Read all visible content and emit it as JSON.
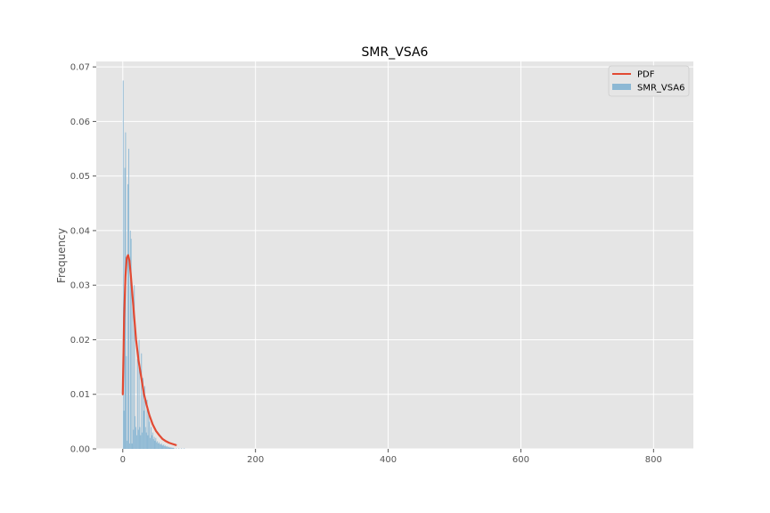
{
  "chart_data": {
    "type": "bar",
    "title": "SMR_VSA6",
    "xlabel": "",
    "ylabel": "Frequency",
    "xlim": [
      -40,
      860
    ],
    "ylim": [
      0,
      0.071
    ],
    "xticks": [
      0,
      200,
      400,
      600,
      800
    ],
    "yticks": [
      0.0,
      0.01,
      0.02,
      0.03,
      0.04,
      0.05,
      0.06,
      0.07
    ],
    "xtick_labels": [
      "0",
      "200",
      "400",
      "600",
      "800"
    ],
    "ytick_labels": [
      "0.00",
      "0.01",
      "0.02",
      "0.03",
      "0.04",
      "0.05",
      "0.06",
      "0.07"
    ],
    "grid": true,
    "legend_position": "top-right",
    "legend": [
      "PDF",
      "SMR_VSA6"
    ],
    "colors": {
      "histogram": "#8cb8d4",
      "pdf": "#e24a33",
      "background": "#e5e5e5",
      "grid": "#ffffff"
    },
    "histogram": {
      "name": "SMR_VSA6",
      "bin_width": 1.2,
      "bins": [
        [
          0.0,
          0.0675
        ],
        [
          1.2,
          0.007
        ],
        [
          2.4,
          0.0515
        ],
        [
          3.6,
          0.058
        ],
        [
          4.8,
          0.017
        ],
        [
          6.0,
          0.0015
        ],
        [
          7.2,
          0.0485
        ],
        [
          8.4,
          0.055
        ],
        [
          9.6,
          0.001
        ],
        [
          10.8,
          0.04
        ],
        [
          12.0,
          0.0385
        ],
        [
          13.2,
          0.001
        ],
        [
          14.4,
          0.028
        ],
        [
          15.6,
          0.0035
        ],
        [
          16.8,
          0.03
        ],
        [
          18.0,
          0.006
        ],
        [
          19.2,
          0.004
        ],
        [
          20.4,
          0.0025
        ],
        [
          21.6,
          0.0165
        ],
        [
          22.8,
          0.0035
        ],
        [
          24.0,
          0.02
        ],
        [
          25.2,
          0.004
        ],
        [
          26.4,
          0.0025
        ],
        [
          27.6,
          0.0175
        ],
        [
          28.8,
          0.003
        ],
        [
          30.0,
          0.013
        ],
        [
          31.2,
          0.007
        ],
        [
          32.4,
          0.0115
        ],
        [
          33.6,
          0.004
        ],
        [
          34.8,
          0.003
        ],
        [
          36.0,
          0.009
        ],
        [
          37.2,
          0.0025
        ],
        [
          38.4,
          0.007
        ],
        [
          39.6,
          0.005
        ],
        [
          40.8,
          0.002
        ],
        [
          42.0,
          0.004
        ],
        [
          43.2,
          0.0025
        ],
        [
          44.4,
          0.003
        ],
        [
          45.6,
          0.0018
        ],
        [
          46.8,
          0.0022
        ],
        [
          48.0,
          0.0015
        ],
        [
          49.2,
          0.002
        ],
        [
          50.4,
          0.0012
        ],
        [
          51.6,
          0.0014
        ],
        [
          52.8,
          0.001
        ],
        [
          54.0,
          0.0012
        ],
        [
          55.2,
          0.0009
        ],
        [
          56.4,
          0.0008
        ],
        [
          57.6,
          0.001
        ],
        [
          58.8,
          0.0007
        ],
        [
          60.0,
          0.0006
        ],
        [
          61.2,
          0.0008
        ],
        [
          62.4,
          0.0005
        ],
        [
          63.6,
          0.0006
        ],
        [
          64.8,
          0.0004
        ],
        [
          66.0,
          0.0005
        ],
        [
          67.2,
          0.0003
        ],
        [
          68.4,
          0.0004
        ],
        [
          69.6,
          0.0003
        ],
        [
          70.8,
          0.0002
        ],
        [
          72.0,
          0.0003
        ],
        [
          73.2,
          0.0002
        ],
        [
          74.4,
          0.0002
        ],
        [
          75.6,
          0.0002
        ],
        [
          76.8,
          0.0001
        ],
        [
          80.0,
          0.0001
        ],
        [
          84.0,
          0.0001
        ],
        [
          88.0,
          0.0001
        ],
        [
          92.0,
          0.0001
        ]
      ]
    },
    "pdf": {
      "name": "PDF",
      "x": [
        0,
        2,
        4,
        6,
        8,
        10,
        12,
        14,
        16,
        18,
        20,
        24,
        28,
        32,
        36,
        40,
        45,
        50,
        55,
        60,
        65,
        70,
        75,
        80
      ],
      "y": [
        0.01,
        0.024,
        0.0315,
        0.035,
        0.0355,
        0.0345,
        0.032,
        0.029,
        0.026,
        0.023,
        0.02,
        0.016,
        0.013,
        0.01,
        0.008,
        0.0062,
        0.0045,
        0.0033,
        0.0025,
        0.0018,
        0.0014,
        0.0011,
        0.0009,
        0.0007
      ]
    }
  }
}
